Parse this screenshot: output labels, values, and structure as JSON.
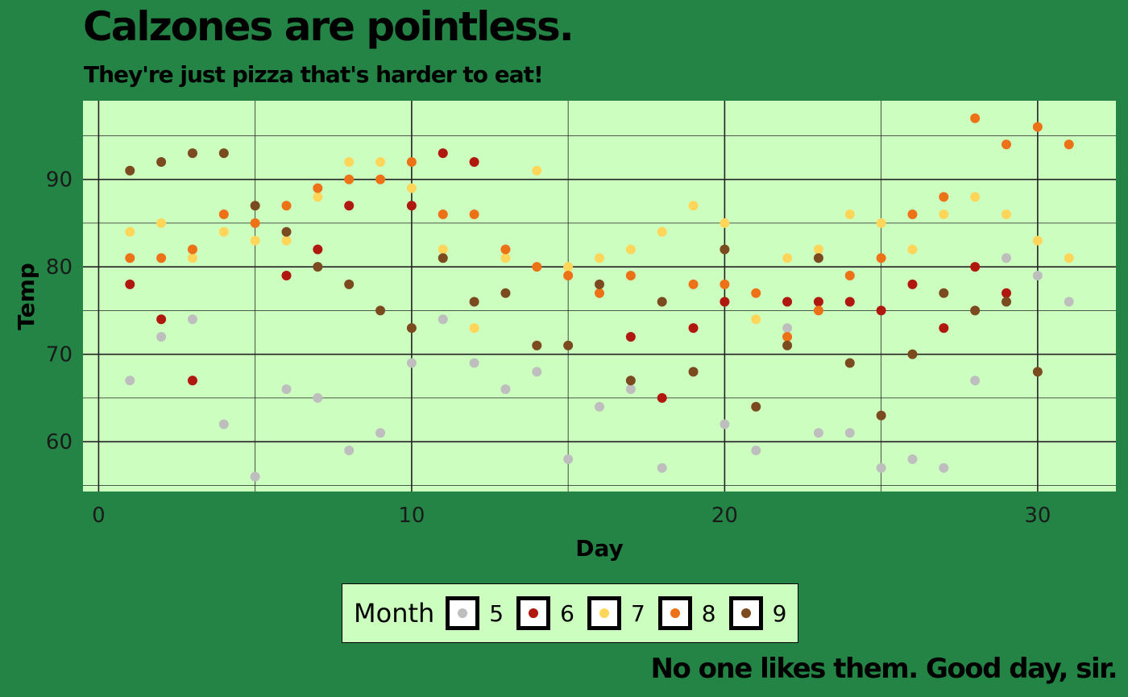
{
  "chart_data": {
    "type": "scatter",
    "title": "Calzones are pointless.",
    "subtitle": "They're just pizza that's harder to eat!",
    "caption": "No one likes them. Good day, sir.",
    "xlabel": "Day",
    "ylabel": "Temp",
    "xlim": [
      -0.5,
      32.5
    ],
    "ylim": [
      54.3,
      99
    ],
    "x_ticks": [
      0,
      10,
      20,
      30
    ],
    "y_ticks": [
      60,
      70,
      80,
      90
    ],
    "grid": true,
    "legend": {
      "title": "Month",
      "placement": "bottom"
    },
    "series": [
      {
        "name": "5",
        "color": "#bebebe",
        "points": [
          [
            1,
            67
          ],
          [
            2,
            72
          ],
          [
            3,
            74
          ],
          [
            4,
            62
          ],
          [
            5,
            56
          ],
          [
            6,
            66
          ],
          [
            7,
            65
          ],
          [
            8,
            59
          ],
          [
            9,
            61
          ],
          [
            10,
            69
          ],
          [
            11,
            74
          ],
          [
            12,
            69
          ],
          [
            13,
            66
          ],
          [
            14,
            68
          ],
          [
            15,
            58
          ],
          [
            16,
            64
          ],
          [
            17,
            66
          ],
          [
            18,
            57
          ],
          [
            19,
            68
          ],
          [
            20,
            62
          ],
          [
            21,
            59
          ],
          [
            22,
            73
          ],
          [
            23,
            61
          ],
          [
            24,
            61
          ],
          [
            25,
            57
          ],
          [
            26,
            58
          ],
          [
            27,
            57
          ],
          [
            28,
            67
          ],
          [
            29,
            81
          ],
          [
            30,
            79
          ],
          [
            31,
            76
          ]
        ]
      },
      {
        "name": "6",
        "color": "#b0170f",
        "points": [
          [
            1,
            78
          ],
          [
            2,
            74
          ],
          [
            3,
            67
          ],
          [
            6,
            79
          ],
          [
            7,
            82
          ],
          [
            8,
            87
          ],
          [
            10,
            87
          ],
          [
            11,
            93
          ],
          [
            12,
            92
          ],
          [
            17,
            72
          ],
          [
            18,
            65
          ],
          [
            19,
            73
          ],
          [
            20,
            76
          ],
          [
            22,
            76
          ],
          [
            23,
            76
          ],
          [
            24,
            76
          ],
          [
            25,
            75
          ],
          [
            26,
            78
          ],
          [
            27,
            73
          ],
          [
            28,
            80
          ],
          [
            29,
            77
          ]
        ]
      },
      {
        "name": "7",
        "color": "#ffd55a",
        "points": [
          [
            1,
            84
          ],
          [
            2,
            85
          ],
          [
            3,
            81
          ],
          [
            4,
            84
          ],
          [
            5,
            83
          ],
          [
            6,
            83
          ],
          [
            7,
            88
          ],
          [
            8,
            92
          ],
          [
            9,
            92
          ],
          [
            10,
            89
          ],
          [
            11,
            82
          ],
          [
            12,
            73
          ],
          [
            13,
            81
          ],
          [
            14,
            91
          ],
          [
            15,
            80
          ],
          [
            16,
            81
          ],
          [
            17,
            82
          ],
          [
            18,
            84
          ],
          [
            19,
            87
          ],
          [
            20,
            85
          ],
          [
            21,
            74
          ],
          [
            22,
            81
          ],
          [
            23,
            82
          ],
          [
            24,
            86
          ],
          [
            25,
            85
          ],
          [
            26,
            82
          ],
          [
            27,
            86
          ],
          [
            28,
            88
          ],
          [
            29,
            86
          ],
          [
            30,
            83
          ],
          [
            31,
            81
          ]
        ]
      },
      {
        "name": "8",
        "color": "#ed7117",
        "points": [
          [
            1,
            81
          ],
          [
            2,
            81
          ],
          [
            3,
            82
          ],
          [
            4,
            86
          ],
          [
            5,
            85
          ],
          [
            6,
            87
          ],
          [
            7,
            89
          ],
          [
            8,
            90
          ],
          [
            9,
            90
          ],
          [
            10,
            92
          ],
          [
            11,
            86
          ],
          [
            12,
            86
          ],
          [
            13,
            82
          ],
          [
            14,
            80
          ],
          [
            15,
            79
          ],
          [
            16,
            77
          ],
          [
            17,
            79
          ],
          [
            19,
            78
          ],
          [
            20,
            78
          ],
          [
            21,
            77
          ],
          [
            22,
            72
          ],
          [
            23,
            75
          ],
          [
            24,
            79
          ],
          [
            25,
            81
          ],
          [
            26,
            86
          ],
          [
            27,
            88
          ],
          [
            28,
            97
          ],
          [
            29,
            94
          ],
          [
            30,
            96
          ],
          [
            31,
            94
          ]
        ]
      },
      {
        "name": "9",
        "color": "#7b4a1f",
        "points": [
          [
            1,
            91
          ],
          [
            2,
            92
          ],
          [
            3,
            93
          ],
          [
            4,
            93
          ],
          [
            5,
            87
          ],
          [
            6,
            84
          ],
          [
            7,
            80
          ],
          [
            8,
            78
          ],
          [
            9,
            75
          ],
          [
            10,
            73
          ],
          [
            11,
            81
          ],
          [
            12,
            76
          ],
          [
            13,
            77
          ],
          [
            14,
            71
          ],
          [
            15,
            71
          ],
          [
            16,
            78
          ],
          [
            17,
            67
          ],
          [
            18,
            76
          ],
          [
            19,
            68
          ],
          [
            20,
            82
          ],
          [
            21,
            64
          ],
          [
            22,
            71
          ],
          [
            23,
            81
          ],
          [
            24,
            69
          ],
          [
            25,
            63
          ],
          [
            26,
            70
          ],
          [
            27,
            77
          ],
          [
            28,
            75
          ],
          [
            29,
            76
          ],
          [
            30,
            68
          ]
        ]
      }
    ]
  }
}
